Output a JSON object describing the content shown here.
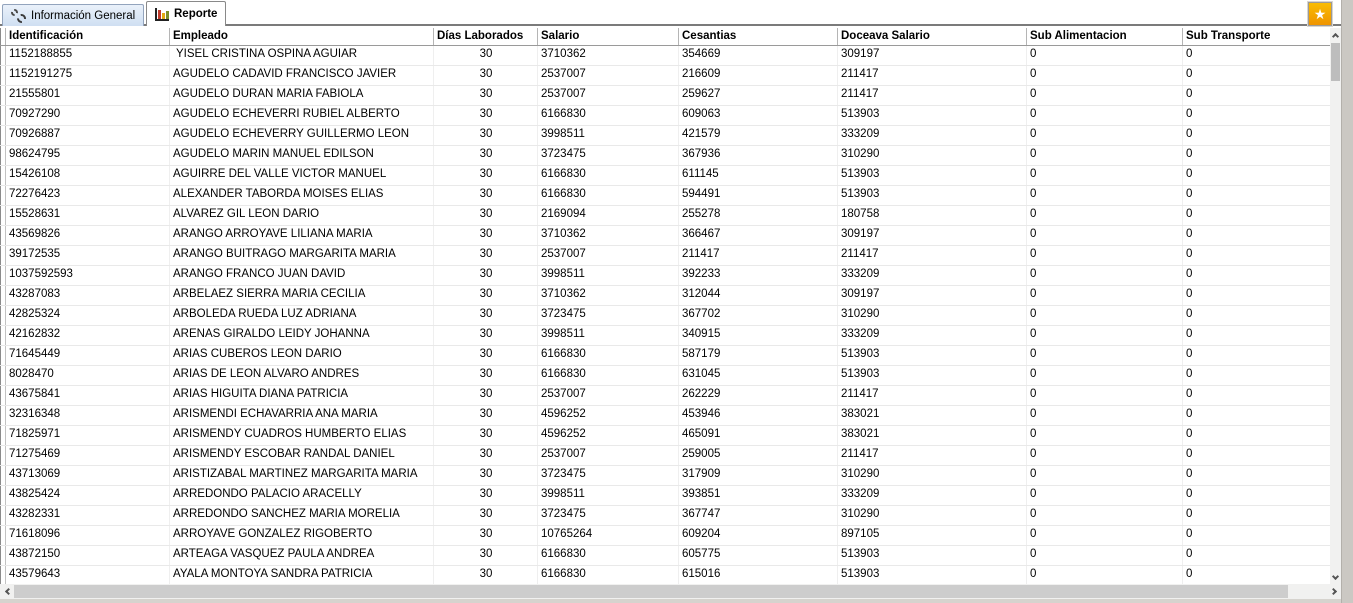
{
  "tabs": {
    "info_general": {
      "label": "Información General",
      "icon": "gears-icon"
    },
    "reporte": {
      "label": "Reporte",
      "icon": "bar-chart-icon",
      "active": true
    }
  },
  "toolbar": {
    "star_glyph": "★"
  },
  "colors": {
    "tab_inactive_bg": "#d7e4f4",
    "star_button": "#f2a300",
    "divider": "#7b7b7b"
  },
  "table": {
    "columns": [
      "Identificación",
      "Empleado",
      "Días Laborados",
      "Salario",
      "Cesantias",
      "Doceava Salario",
      "Sub Alimentacion",
      "Sub Transporte"
    ],
    "rows": [
      [
        "1152188855",
        " YISEL CRISTINA OSPINA AGUIAR",
        "30",
        "3710362",
        "354669",
        "309197",
        "0",
        "0"
      ],
      [
        "1152191275",
        "AGUDELO CADAVID FRANCISCO JAVIER",
        "30",
        "2537007",
        "216609",
        "211417",
        "0",
        "0"
      ],
      [
        "21555801",
        "AGUDELO DURAN MARIA FABIOLA",
        "30",
        "2537007",
        "259627",
        "211417",
        "0",
        "0"
      ],
      [
        "70927290",
        "AGUDELO ECHEVERRI RUBIEL ALBERTO",
        "30",
        "6166830",
        "609063",
        "513903",
        "0",
        "0"
      ],
      [
        "70926887",
        "AGUDELO ECHEVERRY GUILLERMO LEON",
        "30",
        "3998511",
        "421579",
        "333209",
        "0",
        "0"
      ],
      [
        "98624795",
        "AGUDELO MARIN MANUEL EDILSON",
        "30",
        "3723475",
        "367936",
        "310290",
        "0",
        "0"
      ],
      [
        "15426108",
        "AGUIRRE DEL VALLE VICTOR MANUEL",
        "30",
        "6166830",
        "611145",
        "513903",
        "0",
        "0"
      ],
      [
        "72276423",
        "ALEXANDER TABORDA MOISES ELIAS",
        "30",
        "6166830",
        "594491",
        "513903",
        "0",
        "0"
      ],
      [
        "15528631",
        "ALVAREZ GIL LEON DARIO",
        "30",
        "2169094",
        "255278",
        "180758",
        "0",
        "0"
      ],
      [
        "43569826",
        "ARANGO ARROYAVE LILIANA MARIA",
        "30",
        "3710362",
        "366467",
        "309197",
        "0",
        "0"
      ],
      [
        "39172535",
        "ARANGO BUITRAGO MARGARITA MARIA",
        "30",
        "2537007",
        "211417",
        "211417",
        "0",
        "0"
      ],
      [
        "1037592593",
        "ARANGO FRANCO JUAN DAVID",
        "30",
        "3998511",
        "392233",
        "333209",
        "0",
        "0"
      ],
      [
        "43287083",
        "ARBELAEZ SIERRA MARIA CECILIA",
        "30",
        "3710362",
        "312044",
        "309197",
        "0",
        "0"
      ],
      [
        "42825324",
        "ARBOLEDA RUEDA LUZ ADRIANA",
        "30",
        "3723475",
        "367702",
        "310290",
        "0",
        "0"
      ],
      [
        "42162832",
        "ARENAS GIRALDO LEIDY JOHANNA",
        "30",
        "3998511",
        "340915",
        "333209",
        "0",
        "0"
      ],
      [
        "71645449",
        "ARIAS CUBEROS LEON DARIO",
        "30",
        "6166830",
        "587179",
        "513903",
        "0",
        "0"
      ],
      [
        "8028470",
        "ARIAS DE LEON ALVARO ANDRES",
        "30",
        "6166830",
        "631045",
        "513903",
        "0",
        "0"
      ],
      [
        "43675841",
        "ARIAS HIGUITA DIANA PATRICIA",
        "30",
        "2537007",
        "262229",
        "211417",
        "0",
        "0"
      ],
      [
        "32316348",
        "ARISMENDI ECHAVARRIA ANA MARIA",
        "30",
        "4596252",
        "453946",
        "383021",
        "0",
        "0"
      ],
      [
        "71825971",
        "ARISMENDY CUADROS HUMBERTO ELIAS",
        "30",
        "4596252",
        "465091",
        "383021",
        "0",
        "0"
      ],
      [
        "71275469",
        "ARISMENDY ESCOBAR RANDAL DANIEL",
        "30",
        "2537007",
        "259005",
        "211417",
        "0",
        "0"
      ],
      [
        "43713069",
        "ARISTIZABAL MARTINEZ MARGARITA MARIA",
        "30",
        "3723475",
        "317909",
        "310290",
        "0",
        "0"
      ],
      [
        "43825424",
        "ARREDONDO PALACIO ARACELLY",
        "30",
        "3998511",
        "393851",
        "333209",
        "0",
        "0"
      ],
      [
        "43282331",
        "ARREDONDO SANCHEZ MARIA MORELIA",
        "30",
        "3723475",
        "367747",
        "310290",
        "0",
        "0"
      ],
      [
        "71618096",
        "ARROYAVE GONZALEZ RIGOBERTO",
        "30",
        "10765264",
        "609204",
        "897105",
        "0",
        "0"
      ],
      [
        "43872150",
        "ARTEAGA VASQUEZ PAULA ANDREA",
        "30",
        "6166830",
        "605775",
        "513903",
        "0",
        "0"
      ],
      [
        "43579643",
        "AYALA MONTOYA SANDRA PATRICIA",
        "30",
        "6166830",
        "615016",
        "513903",
        "0",
        "0"
      ]
    ]
  }
}
